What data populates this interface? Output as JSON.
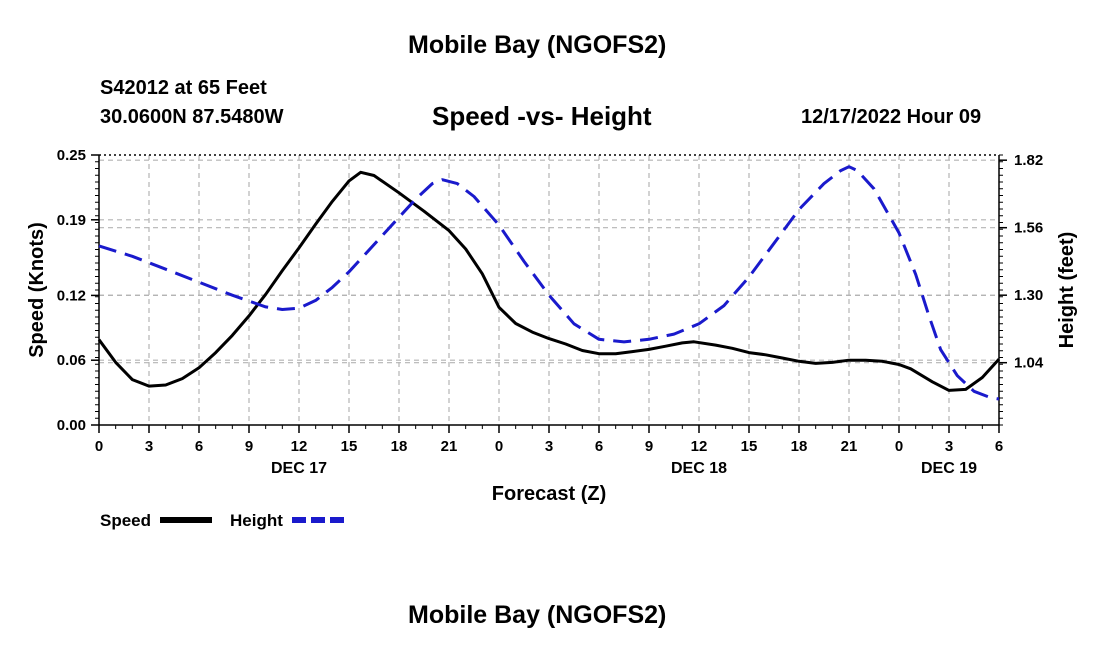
{
  "page_title": "Mobile Bay (NGOFS2)",
  "station": {
    "name_depth": "S42012 at 65 Feet",
    "coords": "30.0600N  87.5480W"
  },
  "forecast_time": "12/17/2022 Hour 09",
  "footer_title": "Mobile Bay (NGOFS2)",
  "chart_data": {
    "type": "line",
    "title": "Speed -vs- Height",
    "xlabel": "Forecast (Z)",
    "ylabel": "Speed (Knots)",
    "y2label": "Height (feet)",
    "x_range": [
      0,
      54
    ],
    "x_tick_values": [
      0,
      3,
      6,
      9,
      12,
      15,
      18,
      21,
      24,
      27,
      30,
      33,
      36,
      39,
      42,
      45,
      48,
      51,
      54
    ],
    "x_tick_labels": [
      "0",
      "3",
      "6",
      "9",
      "12",
      "15",
      "18",
      "21",
      "0",
      "3",
      "6",
      "9",
      "12",
      "15",
      "18",
      "21",
      "0",
      "3",
      "6"
    ],
    "date_labels": [
      {
        "x": 12,
        "label": "DEC 17"
      },
      {
        "x": 36,
        "label": "DEC 18"
      },
      {
        "x": 51,
        "label": "DEC 19"
      }
    ],
    "ylim": [
      0,
      0.25
    ],
    "y_ticks": [
      0.0,
      0.06,
      0.12,
      0.19,
      0.25
    ],
    "y_tick_labels": [
      "0.00",
      "0.06",
      "0.12",
      "0.19",
      "0.25"
    ],
    "y2lim": [
      0.8,
      1.84
    ],
    "y2_ticks": [
      1.04,
      1.3,
      1.56,
      1.82
    ],
    "y2_tick_labels": [
      "1.04",
      "1.30",
      "1.56",
      "1.82"
    ],
    "grid": true,
    "legend_position": "bottom-left",
    "series": [
      {
        "name": "Speed",
        "axis": "left",
        "color": "#000000",
        "dash": "solid",
        "points": [
          [
            0,
            0.079
          ],
          [
            1,
            0.058
          ],
          [
            2,
            0.042
          ],
          [
            3,
            0.036
          ],
          [
            4,
            0.037
          ],
          [
            5,
            0.043
          ],
          [
            6,
            0.053
          ],
          [
            7,
            0.067
          ],
          [
            8,
            0.083
          ],
          [
            9,
            0.101
          ],
          [
            10,
            0.121
          ],
          [
            11,
            0.143
          ],
          [
            12,
            0.164
          ],
          [
            13,
            0.186
          ],
          [
            14,
            0.207
          ],
          [
            15,
            0.226
          ],
          [
            15.7,
            0.234
          ],
          [
            16.5,
            0.231
          ],
          [
            18,
            0.215
          ],
          [
            19.5,
            0.198
          ],
          [
            21,
            0.18
          ],
          [
            22,
            0.163
          ],
          [
            23,
            0.14
          ],
          [
            24,
            0.109
          ],
          [
            25,
            0.094
          ],
          [
            26,
            0.086
          ],
          [
            27,
            0.08
          ],
          [
            28,
            0.075
          ],
          [
            29,
            0.069
          ],
          [
            30,
            0.066
          ],
          [
            31,
            0.066
          ],
          [
            32,
            0.068
          ],
          [
            33,
            0.07
          ],
          [
            34,
            0.073
          ],
          [
            35,
            0.076
          ],
          [
            35.7,
            0.077
          ],
          [
            37,
            0.074
          ],
          [
            38,
            0.071
          ],
          [
            39,
            0.067
          ],
          [
            40,
            0.065
          ],
          [
            41,
            0.062
          ],
          [
            42,
            0.059
          ],
          [
            43,
            0.057
          ],
          [
            44,
            0.058
          ],
          [
            45,
            0.06
          ],
          [
            46,
            0.06
          ],
          [
            47,
            0.059
          ],
          [
            48,
            0.056
          ],
          [
            48.7,
            0.052
          ],
          [
            50,
            0.04
          ],
          [
            51,
            0.032
          ],
          [
            52,
            0.033
          ],
          [
            53,
            0.044
          ],
          [
            54,
            0.061
          ]
        ]
      },
      {
        "name": "Height",
        "axis": "right",
        "color": "#1a1acc",
        "dash": "dashed",
        "points": [
          [
            0,
            1.49
          ],
          [
            2,
            1.45
          ],
          [
            4,
            1.4
          ],
          [
            6,
            1.35
          ],
          [
            8,
            1.3
          ],
          [
            10,
            1.255
          ],
          [
            11,
            1.245
          ],
          [
            12,
            1.25
          ],
          [
            13,
            1.28
          ],
          [
            14,
            1.33
          ],
          [
            15,
            1.39
          ],
          [
            16,
            1.46
          ],
          [
            17,
            1.53
          ],
          [
            18,
            1.6
          ],
          [
            19,
            1.67
          ],
          [
            20,
            1.73
          ],
          [
            20.6,
            1.745
          ],
          [
            21.5,
            1.73
          ],
          [
            22.5,
            1.68
          ],
          [
            24,
            1.57
          ],
          [
            25.5,
            1.43
          ],
          [
            27,
            1.3
          ],
          [
            28.5,
            1.19
          ],
          [
            30,
            1.13
          ],
          [
            31.5,
            1.12
          ],
          [
            33,
            1.13
          ],
          [
            34.5,
            1.15
          ],
          [
            36,
            1.19
          ],
          [
            37.5,
            1.26
          ],
          [
            39,
            1.37
          ],
          [
            40.5,
            1.5
          ],
          [
            42,
            1.63
          ],
          [
            43.5,
            1.73
          ],
          [
            44.5,
            1.78
          ],
          [
            45,
            1.795
          ],
          [
            45.5,
            1.78
          ],
          [
            46.5,
            1.71
          ],
          [
            48,
            1.54
          ],
          [
            49,
            1.38
          ],
          [
            49.8,
            1.22
          ],
          [
            50.5,
            1.09
          ],
          [
            51.5,
            0.99
          ],
          [
            52.5,
            0.93
          ],
          [
            53.5,
            0.905
          ],
          [
            54,
            0.9
          ]
        ]
      }
    ]
  }
}
